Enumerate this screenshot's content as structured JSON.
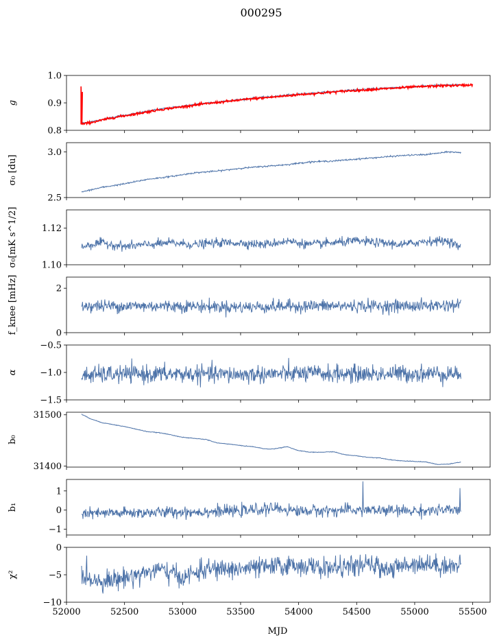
{
  "figure": {
    "title": "000295",
    "xlabel": "MJD",
    "background": "#ffffff"
  },
  "chart_data": [
    {
      "type": "line",
      "ylabel": "g",
      "ylabel_math": true,
      "ylim": [
        0.8,
        1.0
      ],
      "yticks": [
        {
          "value": 0.8,
          "label": "0.8"
        },
        {
          "value": 0.9,
          "label": "0.9"
        },
        {
          "value": 1.0,
          "label": "1.0"
        }
      ],
      "xlim": [
        52000,
        55650
      ],
      "series": [
        {
          "color": "#4c72a8",
          "noise": 0.0015,
          "x": [
            52130,
            52250,
            52400,
            52600,
            52800,
            53000,
            53200,
            53400,
            53600,
            53800,
            54000,
            54200,
            54400,
            54600,
            54800,
            55000,
            55200,
            55400
          ],
          "y": [
            0.826,
            0.834,
            0.848,
            0.862,
            0.877,
            0.888,
            0.899,
            0.908,
            0.917,
            0.924,
            0.932,
            0.938,
            0.945,
            0.95,
            0.955,
            0.96,
            0.964,
            0.966
          ]
        },
        {
          "color": "#ff0000",
          "noise": 0.002,
          "spike": {
            "x": 52125,
            "y_low": 0.822,
            "y_high": 0.96
          },
          "x": [
            52130,
            52250,
            52400,
            52600,
            52800,
            53000,
            53200,
            53400,
            53600,
            53800,
            54000,
            54200,
            54400,
            54600,
            54800,
            55000,
            55200,
            55400,
            55500
          ],
          "y": [
            0.822,
            0.832,
            0.846,
            0.86,
            0.875,
            0.886,
            0.897,
            0.906,
            0.915,
            0.922,
            0.93,
            0.936,
            0.943,
            0.948,
            0.953,
            0.958,
            0.962,
            0.964,
            0.966
          ]
        }
      ]
    },
    {
      "type": "line",
      "ylabel": "σ₀ [du]",
      "ylim": [
        2.5,
        3.1
      ],
      "yticks": [
        {
          "value": 2.5,
          "label": "2.5"
        },
        {
          "value": 3.0,
          "label": "3.0"
        }
      ],
      "xlim": [
        52000,
        55650
      ],
      "series": [
        {
          "color": "#4c72a8",
          "noise": 0.004,
          "x": [
            52130,
            52300,
            52500,
            52700,
            52900,
            53100,
            53300,
            53500,
            53700,
            53900,
            54100,
            54300,
            54500,
            54700,
            54900,
            55100,
            55300,
            55400
          ],
          "y": [
            2.56,
            2.61,
            2.65,
            2.7,
            2.73,
            2.77,
            2.79,
            2.82,
            2.84,
            2.86,
            2.89,
            2.9,
            2.92,
            2.94,
            2.96,
            2.97,
            3.0,
            2.99
          ]
        }
      ]
    },
    {
      "type": "line",
      "ylabel": "σ₀[mK s^1/2]",
      "ylim": [
        1.1,
        1.13
      ],
      "yticks": [
        {
          "value": 1.1,
          "label": "1.10"
        },
        {
          "value": 1.12,
          "label": "1.12"
        }
      ],
      "xlim": [
        52000,
        55650
      ],
      "series": [
        {
          "color": "#4c72a8",
          "noise": 0.0012,
          "x": [
            52130,
            52300,
            52500,
            52700,
            52900,
            53100,
            53300,
            53500,
            53700,
            53900,
            54100,
            54300,
            54500,
            54700,
            54900,
            55100,
            55300,
            55400
          ],
          "y": [
            1.11,
            1.112,
            1.11,
            1.111,
            1.112,
            1.111,
            1.112,
            1.112,
            1.111,
            1.113,
            1.111,
            1.112,
            1.113,
            1.112,
            1.111,
            1.113,
            1.113,
            1.109
          ]
        }
      ]
    },
    {
      "type": "line",
      "ylabel": "f_knee [mHz]",
      "ylim": [
        0,
        2.5
      ],
      "yticks": [
        {
          "value": 0,
          "label": "0"
        },
        {
          "value": 2,
          "label": "2"
        }
      ],
      "xlim": [
        52000,
        55650
      ],
      "series": [
        {
          "color": "#4c72a8",
          "noise": 0.14,
          "x": [
            52130,
            52500,
            53000,
            53500,
            54000,
            54500,
            55000,
            55400
          ],
          "y": [
            1.2,
            1.2,
            1.2,
            1.15,
            1.2,
            1.2,
            1.2,
            1.25
          ]
        }
      ]
    },
    {
      "type": "line",
      "ylabel": "α",
      "ylabel_math": true,
      "ylim": [
        -1.5,
        -0.5
      ],
      "yticks": [
        {
          "value": -1.5,
          "label": "−1.5"
        },
        {
          "value": -1.0,
          "label": "−1.0"
        },
        {
          "value": -0.5,
          "label": "−0.5"
        }
      ],
      "xlim": [
        52000,
        55650
      ],
      "series": [
        {
          "color": "#4c72a8",
          "noise": 0.08,
          "x": [
            52130,
            52500,
            53000,
            53500,
            54000,
            54500,
            55000,
            55400
          ],
          "y": [
            -1.05,
            -1.03,
            -1.03,
            -1.04,
            -1.02,
            -1.03,
            -1.02,
            -1.02
          ]
        }
      ]
    },
    {
      "type": "line",
      "ylabel": "b₀",
      "ylim": [
        31398,
        31505
      ],
      "yticks": [
        {
          "value": 31400,
          "label": "31400"
        },
        {
          "value": 31500,
          "label": "31500"
        }
      ],
      "xlim": [
        52000,
        55650
      ],
      "series": [
        {
          "color": "#4c72a8",
          "noise": 0.3,
          "x": [
            52130,
            52200,
            52300,
            52400,
            52500,
            52600,
            52700,
            52800,
            52900,
            53000,
            53100,
            53200,
            53300,
            53400,
            53500,
            53600,
            53700,
            53750,
            53800,
            53900,
            54000,
            54100,
            54200,
            54300,
            54400,
            54500,
            54600,
            54700,
            54800,
            54900,
            55000,
            55100,
            55200,
            55300,
            55400
          ],
          "y": [
            31501,
            31493,
            31485,
            31481,
            31477,
            31472,
            31467,
            31465,
            31461,
            31456,
            31454,
            31452,
            31445,
            31443,
            31440,
            31438,
            31434,
            31433,
            31434,
            31438,
            31430,
            31427,
            31427,
            31428,
            31422,
            31420,
            31417,
            31416,
            31412,
            31410,
            31409,
            31408,
            31403,
            31404,
            31408
          ]
        }
      ]
    },
    {
      "type": "line",
      "ylabel": "b₁",
      "ylim": [
        -1.3,
        1.6
      ],
      "yticks": [
        {
          "value": -1,
          "label": "−1"
        },
        {
          "value": 0,
          "label": "0"
        },
        {
          "value": 1,
          "label": "1"
        }
      ],
      "xlim": [
        52000,
        55650
      ],
      "series": [
        {
          "color": "#4c72a8",
          "noise": 0.15,
          "spikes": [
            {
              "x": 54555,
              "y": 1.5
            },
            {
              "x": 55180,
              "y": -1.15
            },
            {
              "x": 55390,
              "y": 1.15
            }
          ],
          "x": [
            52130,
            52500,
            53000,
            53500,
            53800,
            54000,
            54500,
            55000,
            55400
          ],
          "y": [
            -0.2,
            -0.15,
            -0.1,
            -0.05,
            0.1,
            -0.05,
            0.0,
            -0.05,
            0.0
          ]
        }
      ]
    },
    {
      "type": "line",
      "ylabel": "χ²",
      "ylim": [
        -10,
        0
      ],
      "yticks": [
        {
          "value": -10,
          "label": "−10"
        },
        {
          "value": -5,
          "label": "−5"
        },
        {
          "value": 0,
          "label": "0"
        }
      ],
      "xlim": [
        52000,
        55650
      ],
      "xticks": [
        {
          "value": 52000,
          "label": "52000"
        },
        {
          "value": 52500,
          "label": "52500"
        },
        {
          "value": 53000,
          "label": "53000"
        },
        {
          "value": 53500,
          "label": "53500"
        },
        {
          "value": 54000,
          "label": "54000"
        },
        {
          "value": 54500,
          "label": "54500"
        },
        {
          "value": 55000,
          "label": "55000"
        },
        {
          "value": 55500,
          "label": "55500"
        }
      ],
      "series": [
        {
          "color": "#4c72a8",
          "noise": 0.9,
          "x": [
            52130,
            52250,
            52400,
            52600,
            52800,
            53000,
            53200,
            53400,
            53600,
            53800,
            54000,
            54200,
            54400,
            54600,
            54800,
            55000,
            55200,
            55400
          ],
          "y": [
            -5.0,
            -6.0,
            -6.0,
            -5.0,
            -4.0,
            -5.5,
            -4.0,
            -4.0,
            -3.8,
            -3.5,
            -3.2,
            -3.8,
            -3.6,
            -3.2,
            -4.0,
            -2.8,
            -3.2,
            -3.5
          ]
        }
      ]
    }
  ]
}
